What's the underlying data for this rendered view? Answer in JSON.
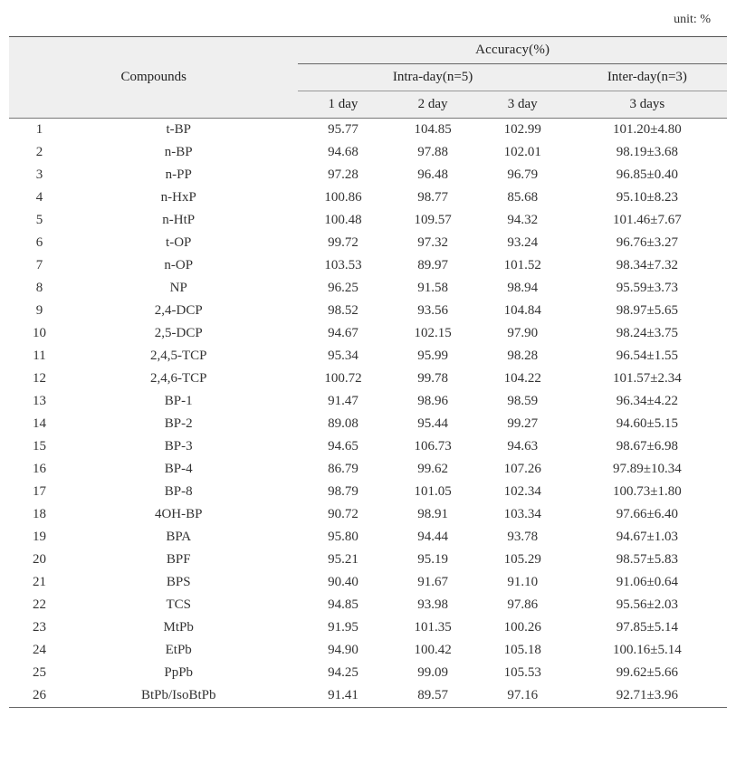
{
  "unit_label": "unit: %",
  "headers": {
    "compounds": "Compounds",
    "accuracy": "Accuracy(%)",
    "intra": "Intra-day(n=5)",
    "inter": "Inter-day(n=3)",
    "day1": "1 day",
    "day2": "2 day",
    "day3": "3 day",
    "days3": "3 days"
  },
  "rows": [
    {
      "n": "1",
      "c": "t-BP",
      "d1": "95.77",
      "d2": "104.85",
      "d3": "102.99",
      "i": "101.20±4.80"
    },
    {
      "n": "2",
      "c": "n-BP",
      "d1": "94.68",
      "d2": "97.88",
      "d3": "102.01",
      "i": "98.19±3.68"
    },
    {
      "n": "3",
      "c": "n-PP",
      "d1": "97.28",
      "d2": "96.48",
      "d3": "96.79",
      "i": "96.85±0.40"
    },
    {
      "n": "4",
      "c": "n-HxP",
      "d1": "100.86",
      "d2": "98.77",
      "d3": "85.68",
      "i": "95.10±8.23"
    },
    {
      "n": "5",
      "c": "n-HtP",
      "d1": "100.48",
      "d2": "109.57",
      "d3": "94.32",
      "i": "101.46±7.67"
    },
    {
      "n": "6",
      "c": "t-OP",
      "d1": "99.72",
      "d2": "97.32",
      "d3": "93.24",
      "i": "96.76±3.27"
    },
    {
      "n": "7",
      "c": "n-OP",
      "d1": "103.53",
      "d2": "89.97",
      "d3": "101.52",
      "i": "98.34±7.32"
    },
    {
      "n": "8",
      "c": "NP",
      "d1": "96.25",
      "d2": "91.58",
      "d3": "98.94",
      "i": "95.59±3.73"
    },
    {
      "n": "9",
      "c": "2,4-DCP",
      "d1": "98.52",
      "d2": "93.56",
      "d3": "104.84",
      "i": "98.97±5.65"
    },
    {
      "n": "10",
      "c": "2,5-DCP",
      "d1": "94.67",
      "d2": "102.15",
      "d3": "97.90",
      "i": "98.24±3.75"
    },
    {
      "n": "11",
      "c": "2,4,5-TCP",
      "d1": "95.34",
      "d2": "95.99",
      "d3": "98.28",
      "i": "96.54±1.55"
    },
    {
      "n": "12",
      "c": "2,4,6-TCP",
      "d1": "100.72",
      "d2": "99.78",
      "d3": "104.22",
      "i": "101.57±2.34"
    },
    {
      "n": "13",
      "c": "BP-1",
      "d1": "91.47",
      "d2": "98.96",
      "d3": "98.59",
      "i": "96.34±4.22"
    },
    {
      "n": "14",
      "c": "BP-2",
      "d1": "89.08",
      "d2": "95.44",
      "d3": "99.27",
      "i": "94.60±5.15"
    },
    {
      "n": "15",
      "c": "BP-3",
      "d1": "94.65",
      "d2": "106.73",
      "d3": "94.63",
      "i": "98.67±6.98"
    },
    {
      "n": "16",
      "c": "BP-4",
      "d1": "86.79",
      "d2": "99.62",
      "d3": "107.26",
      "i": "97.89±10.34"
    },
    {
      "n": "17",
      "c": "BP-8",
      "d1": "98.79",
      "d2": "101.05",
      "d3": "102.34",
      "i": "100.73±1.80"
    },
    {
      "n": "18",
      "c": "4OH-BP",
      "d1": "90.72",
      "d2": "98.91",
      "d3": "103.34",
      "i": "97.66±6.40"
    },
    {
      "n": "19",
      "c": "BPA",
      "d1": "95.80",
      "d2": "94.44",
      "d3": "93.78",
      "i": "94.67±1.03"
    },
    {
      "n": "20",
      "c": "BPF",
      "d1": "95.21",
      "d2": "95.19",
      "d3": "105.29",
      "i": "98.57±5.83"
    },
    {
      "n": "21",
      "c": "BPS",
      "d1": "90.40",
      "d2": "91.67",
      "d3": "91.10",
      "i": "91.06±0.64"
    },
    {
      "n": "22",
      "c": "TCS",
      "d1": "94.85",
      "d2": "93.98",
      "d3": "97.86",
      "i": "95.56±2.03"
    },
    {
      "n": "23",
      "c": "MtPb",
      "d1": "91.95",
      "d2": "101.35",
      "d3": "100.26",
      "i": "97.85±5.14"
    },
    {
      "n": "24",
      "c": "EtPb",
      "d1": "94.90",
      "d2": "100.42",
      "d3": "105.18",
      "i": "100.16±5.14"
    },
    {
      "n": "25",
      "c": "PpPb",
      "d1": "94.25",
      "d2": "99.09",
      "d3": "105.53",
      "i": "99.62±5.66"
    },
    {
      "n": "26",
      "c": "BtPb/IsoBtPb",
      "d1": "91.41",
      "d2": "89.57",
      "d3": "97.16",
      "i": "92.71±3.96"
    }
  ]
}
